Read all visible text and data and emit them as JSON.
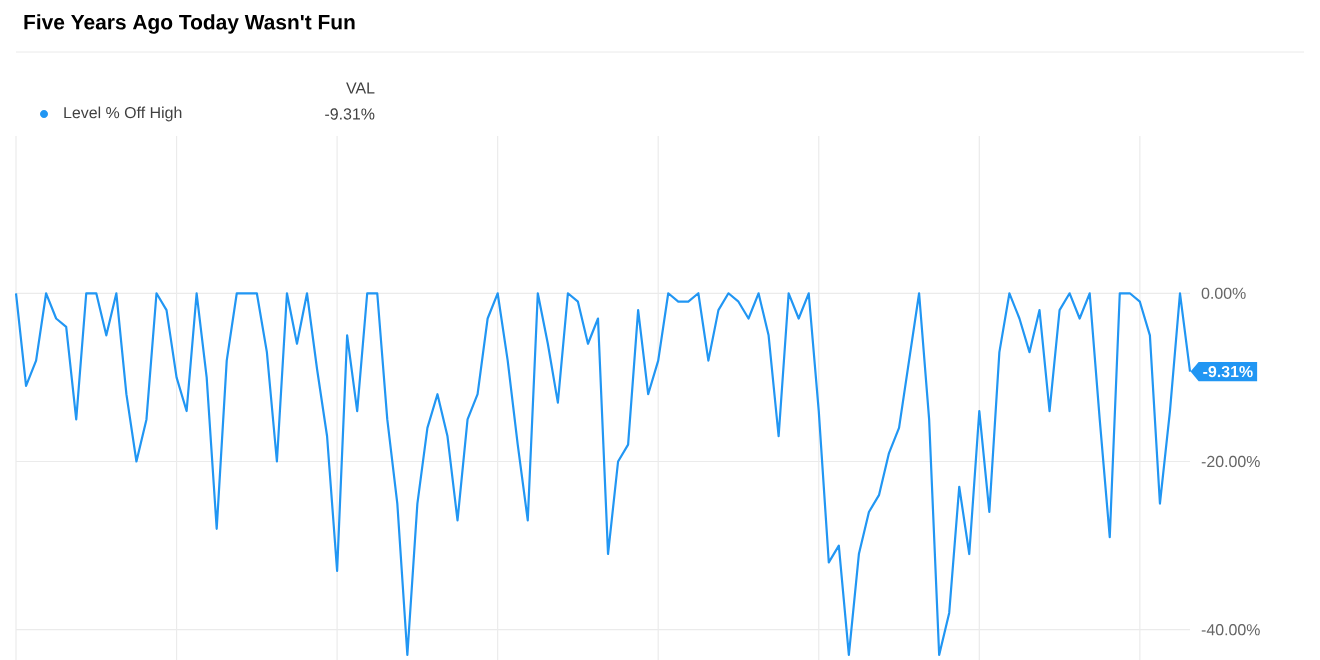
{
  "chart_data": {
    "type": "line",
    "title": "Five Years Ago Today Wasn't Fun",
    "legend_title": "VAL",
    "legend": "top left",
    "grid": true,
    "tick_labels": "y",
    "marker": "none",
    "line_style": "solid",
    "categories": [
      null,
      null,
      null,
      null,
      null,
      null,
      null,
      null,
      null,
      null,
      null,
      null,
      null,
      null,
      null,
      null,
      null,
      null,
      null,
      null,
      null,
      null,
      null,
      null,
      null,
      null,
      null,
      null,
      null,
      null,
      null,
      null,
      null,
      null,
      null,
      null,
      null,
      null,
      null,
      null,
      null,
      null,
      null,
      null,
      null,
      null,
      null,
      null,
      null,
      null,
      null,
      null,
      null,
      null,
      null,
      null,
      null,
      null,
      null,
      null,
      null,
      null,
      null,
      null,
      null,
      null,
      null,
      null,
      null,
      null,
      null,
      null,
      null,
      null,
      null,
      null,
      null,
      null,
      null,
      null,
      null,
      null,
      null,
      null,
      null,
      null,
      null,
      null,
      null,
      null,
      null,
      null,
      null,
      null,
      null,
      null,
      null,
      null,
      null,
      null,
      null,
      null,
      null,
      null,
      null,
      null,
      null,
      null,
      null,
      null,
      null,
      null,
      null,
      null,
      null,
      null,
      null,
      null
    ],
    "ylim": [
      -43.6,
      18.7
    ],
    "yticks": [
      {
        "value": 0,
        "label": "0.00%"
      },
      {
        "value": -20,
        "label": "-20.00%"
      },
      {
        "value": -40,
        "label": "-40.00%"
      }
    ],
    "annotations": [
      "-9.31%",
      "-9.31%"
    ],
    "series": [
      {
        "name": "Level % Off High",
        "color": "#2196f3",
        "values": [
          0,
          -11,
          -8,
          0,
          -3,
          -4,
          -15,
          0,
          0,
          -5,
          0,
          -12,
          -20,
          -15,
          0,
          -2,
          -10,
          -14,
          0,
          -10,
          -28,
          -8,
          0,
          0,
          0,
          -7,
          -20,
          0,
          -6,
          0,
          -9,
          -17,
          -33,
          -5,
          -14,
          0,
          0,
          -15,
          -25,
          -43,
          -25,
          -16,
          -12,
          -17,
          -27,
          -15,
          -12,
          -3,
          0,
          -8,
          -18,
          -27,
          0,
          -6,
          -13,
          0,
          -1,
          -6,
          -3,
          -31,
          -20,
          -18,
          -2,
          -12,
          -8,
          0,
          -1,
          -1,
          0,
          -8,
          -2,
          0,
          -1,
          -3,
          0,
          -5,
          -17,
          0,
          -3,
          0,
          -14,
          -32,
          -30,
          -43,
          -31,
          -26,
          -24,
          -19,
          -16,
          -8,
          0,
          -15,
          -43,
          -38,
          -23,
          -31,
          -14,
          -26,
          -7,
          0,
          -3,
          -7,
          -2,
          -14,
          -2,
          0,
          -3,
          0,
          -15,
          -29,
          0,
          0,
          -1,
          -5,
          -25,
          -14,
          0,
          -9.31
        ]
      }
    ]
  }
}
